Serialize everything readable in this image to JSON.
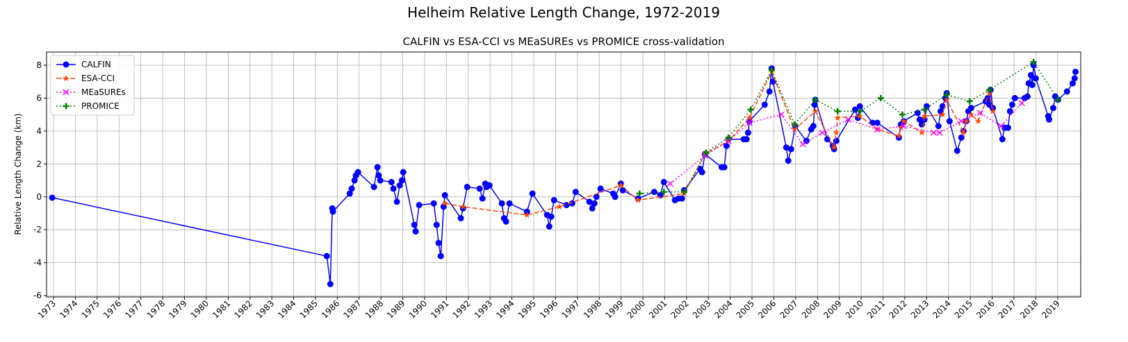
{
  "chart_data": {
    "type": "line",
    "title": "Helheim Relative Length Change, 1972-2019",
    "subtitle": "CALFIN vs ESA-CCI vs MEaSUREs vs PROMICE cross-validation",
    "y_label": "Relative Length Change (km)",
    "xlim": [
      1972.68,
      2020.06
    ],
    "ylim": [
      -6.08,
      8.8
    ],
    "xticks": [
      1973,
      1974,
      1975,
      1976,
      1977,
      1978,
      1979,
      1980,
      1981,
      1982,
      1983,
      1984,
      1985,
      1986,
      1987,
      1988,
      1989,
      1990,
      1991,
      1992,
      1993,
      1994,
      1995,
      1996,
      1997,
      1998,
      1999,
      2000,
      2001,
      2002,
      2003,
      2004,
      2005,
      2006,
      2007,
      2008,
      2009,
      2010,
      2011,
      2012,
      2013,
      2014,
      2015,
      2016,
      2017,
      2018,
      2019
    ],
    "yticks": [
      -6,
      -4,
      -2,
      0,
      2,
      4,
      6,
      8
    ],
    "grid": true,
    "legend": "upper-left",
    "series": [
      {
        "name": "CALFIN",
        "color": "#0000ff",
        "marker": "circle",
        "dash": "solid",
        "x": [
          1972.94,
          1985.52,
          1985.68,
          1985.77,
          1985.8,
          1986.57,
          1986.66,
          1986.79,
          1986.85,
          1986.95,
          1987.68,
          1987.84,
          1987.9,
          1987.97,
          1988.48,
          1988.57,
          1988.73,
          1988.86,
          1988.96,
          1989.02,
          1989.53,
          1989.59,
          1989.75,
          1990.42,
          1990.55,
          1990.64,
          1990.74,
          1990.87,
          1990.93,
          1991.66,
          1991.76,
          1991.95,
          1992.52,
          1992.65,
          1992.78,
          1992.84,
          1992.97,
          1993.54,
          1993.64,
          1993.73,
          1993.89,
          1994.69,
          1994.94,
          1995.61,
          1995.71,
          1995.8,
          1995.93,
          1996.5,
          1996.76,
          1996.92,
          1997.55,
          1997.68,
          1997.78,
          1997.87,
          1998.06,
          1998.64,
          1998.73,
          1998.99,
          1999.08,
          1999.78,
          2000.52,
          2000.8,
          2000.96,
          2001.47,
          2001.63,
          2001.79,
          2001.89,
          2002.62,
          2002.71,
          2002.84,
          2003.61,
          2003.73,
          2003.83,
          2003.92,
          2004.62,
          2004.75,
          2004.82,
          2004.88,
          2005.58,
          2005.8,
          2005.9,
          2005.96,
          2006.57,
          2006.66,
          2006.79,
          2006.98,
          2007.49,
          2007.71,
          2007.81,
          2007.87,
          2007.9,
          2008.45,
          2008.7,
          2008.76,
          2008.86,
          2009.72,
          2009.85,
          2009.94,
          2010.52,
          2010.74,
          2011.73,
          2011.82,
          2011.95,
          2012.59,
          2012.68,
          2012.78,
          2012.9,
          2013.0,
          2013.54,
          2013.64,
          2013.73,
          2013.86,
          2013.92,
          2014.05,
          2014.4,
          2014.59,
          2014.69,
          2014.82,
          2014.91,
          2015.04,
          2015.71,
          2015.8,
          2015.87,
          2015.93,
          2016.03,
          2016.47,
          2016.57,
          2016.73,
          2016.82,
          2016.92,
          2017.04,
          2017.49,
          2017.62,
          2017.68,
          2017.78,
          2017.84,
          2017.9,
          2018.0,
          2018.57,
          2018.61,
          2018.8,
          2018.89,
          2019.02,
          2019.43,
          2019.69,
          2019.78,
          2019.82
        ],
        "values": [
          -0.05,
          -3.6,
          -5.3,
          -0.7,
          -0.9,
          0.2,
          0.5,
          1.0,
          1.3,
          1.5,
          0.6,
          1.8,
          1.3,
          1.0,
          0.9,
          0.5,
          -0.3,
          0.7,
          1.0,
          1.5,
          -1.7,
          -2.1,
          -0.5,
          -0.4,
          -1.7,
          -2.8,
          -3.6,
          -0.6,
          0.1,
          -1.3,
          -0.7,
          0.6,
          0.5,
          -0.1,
          0.8,
          0.6,
          0.7,
          -0.4,
          -1.3,
          -1.5,
          -0.4,
          -0.9,
          0.2,
          -1.1,
          -1.8,
          -1.2,
          -0.2,
          -0.5,
          -0.4,
          0.3,
          -0.3,
          -0.7,
          -0.4,
          0.0,
          0.5,
          0.2,
          0.0,
          0.8,
          0.4,
          -0.1,
          0.3,
          0.1,
          0.9,
          -0.2,
          -0.1,
          -0.1,
          0.4,
          1.7,
          1.5,
          2.6,
          1.8,
          1.8,
          3.1,
          3.5,
          3.5,
          3.5,
          3.9,
          4.6,
          5.6,
          6.4,
          7.8,
          7.0,
          3.0,
          2.2,
          2.9,
          4.3,
          3.4,
          4.1,
          4.3,
          5.6,
          5.9,
          3.5,
          3.1,
          2.9,
          3.4,
          5.3,
          4.8,
          5.5,
          4.5,
          4.5,
          3.6,
          4.4,
          4.6,
          5.1,
          4.7,
          4.4,
          4.7,
          5.5,
          4.3,
          5.2,
          5.5,
          6.0,
          6.3,
          4.6,
          2.8,
          3.6,
          4.0,
          4.6,
          5.2,
          5.4,
          5.8,
          6.0,
          5.6,
          6.5,
          5.4,
          3.5,
          4.2,
          4.2,
          5.2,
          5.6,
          6.0,
          6.0,
          6.1,
          6.9,
          7.4,
          6.8,
          8.0,
          7.2,
          4.9,
          4.7,
          5.4,
          6.1,
          5.9,
          6.4,
          6.9,
          7.2,
          7.6
        ]
      },
      {
        "name": "ESA-CCI",
        "color": "#ff4500",
        "marker": "star",
        "dash": "dashed",
        "x": [
          1990.93,
          1991.76,
          1994.69,
          1996.18,
          1998.99,
          1999.78,
          2001.89,
          2002.84,
          2003.92,
          2004.88,
          2005.9,
          2006.95,
          2007.9,
          2008.76,
          2008.86,
          2008.92,
          2009.94,
          2010.74,
          2011.73,
          2011.82,
          2011.95,
          2012.78,
          2012.9,
          2013.73,
          2013.92,
          2014.69,
          2014.82,
          2015.04,
          2015.36,
          2015.87,
          2016.03
        ],
        "values": [
          -0.4,
          -0.6,
          -1.1,
          -0.6,
          0.7,
          -0.2,
          0.2,
          2.6,
          3.4,
          4.8,
          7.6,
          4.1,
          5.2,
          3.0,
          3.9,
          4.8,
          4.9,
          4.1,
          3.7,
          4.2,
          4.6,
          3.9,
          4.9,
          5.0,
          5.9,
          3.9,
          4.6,
          5.0,
          4.6,
          6.3,
          5.2
        ]
      },
      {
        "name": "MEaSUREs",
        "color": "#ff00ff",
        "marker": "x",
        "dash": "dotted",
        "x": [
          2001.25,
          2002.84,
          2003.92,
          2004.88,
          2006.34,
          2007.33,
          2008.22,
          2009.4,
          2010.74,
          2011.95,
          2013.32,
          2013.6,
          2014.59,
          2015.45,
          2016.41,
          2017.36
        ],
        "values": [
          0.8,
          2.5,
          3.4,
          4.5,
          5.0,
          3.2,
          3.9,
          4.7,
          4.1,
          4.3,
          3.9,
          3.9,
          4.6,
          5.1,
          4.3,
          5.7
        ]
      },
      {
        "name": "PROMICE",
        "color": "#008000",
        "marker": "plus",
        "dash": "dotted",
        "x": [
          1999.85,
          2000.96,
          2001.89,
          2002.9,
          2003.92,
          2004.94,
          2005.9,
          2006.95,
          2007.9,
          2008.92,
          2009.94,
          2010.9,
          2011.89,
          2012.9,
          2013.92,
          2014.97,
          2015.87,
          2017.9,
          2019.02
        ],
        "values": [
          0.2,
          0.3,
          0.3,
          2.7,
          3.6,
          5.3,
          7.7,
          4.4,
          5.9,
          5.2,
          5.2,
          6.0,
          5.0,
          5.3,
          6.2,
          5.8,
          6.5,
          8.2,
          5.9
        ]
      }
    ]
  }
}
